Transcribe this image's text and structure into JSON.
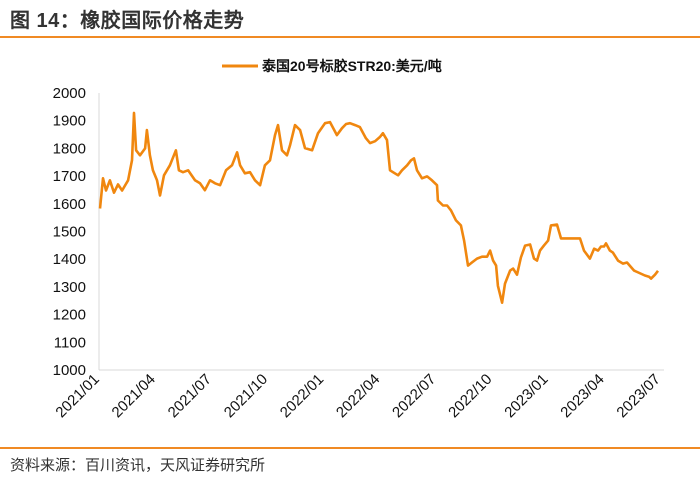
{
  "header": {
    "title": "图 14：橡胶国际价格走势"
  },
  "footer": {
    "source": "资料来源：百川资讯，天风证券研究所"
  },
  "colors": {
    "accent": "#f08a24",
    "series": "#f0870f",
    "axis": "#d9d9d9"
  },
  "chart_data": {
    "type": "line",
    "title": "橡胶国际价格走势",
    "xlabel": "",
    "ylabel": "",
    "ylim": [
      1000,
      2000
    ],
    "yticks": [
      "1000",
      "1100",
      "1200",
      "1300",
      "1400",
      "1500",
      "1600",
      "1700",
      "1800",
      "1900",
      "2000"
    ],
    "xticks": [
      "2021/01",
      "2021/04",
      "2021/07",
      "2021/10",
      "2022/01",
      "2022/04",
      "2022/07",
      "2022/10",
      "2023/01",
      "2023/04",
      "2023/07"
    ],
    "x_unit": "months since 2021/01",
    "grid": false,
    "legend_position": "top-center",
    "series": [
      {
        "name": "泰国20号标胶STR20:美元/吨",
        "x": [
          0,
          0.16,
          0.32,
          0.53,
          0.75,
          0.96,
          1.18,
          1.5,
          1.71,
          1.82,
          1.93,
          2.14,
          2.41,
          2.51,
          2.67,
          2.83,
          3.05,
          3.21,
          3.42,
          3.74,
          4.06,
          4.22,
          4.44,
          4.71,
          5.08,
          5.35,
          5.61,
          5.88,
          6.15,
          6.42,
          6.74,
          7.06,
          7.33,
          7.49,
          7.75,
          8.02,
          8.29,
          8.56,
          8.82,
          9.09,
          9.36,
          9.52,
          9.73,
          10.0,
          10.16,
          10.43,
          10.7,
          10.96,
          11.34,
          11.66,
          12.03,
          12.3,
          12.67,
          12.94,
          13.16,
          13.37,
          13.64,
          13.9,
          14.22,
          14.44,
          14.71,
          14.97,
          15.13,
          15.35,
          15.51,
          15.67,
          15.94,
          16.15,
          16.42,
          16.63,
          16.79,
          16.95,
          17.22,
          17.49,
          17.75,
          18.02,
          18.07,
          18.34,
          18.56,
          18.77,
          19.04,
          19.3,
          19.47,
          19.68,
          19.89,
          20.16,
          20.43,
          20.7,
          20.86,
          21.02,
          21.18,
          21.28,
          21.5,
          21.66,
          21.93,
          22.09,
          22.3,
          22.51,
          22.73,
          23.0,
          23.21,
          23.37,
          23.53,
          23.74,
          23.96,
          24.12,
          24.44,
          24.65,
          25.13,
          25.67,
          25.88,
          26.2,
          26.42,
          26.63,
          26.79,
          26.95,
          27.06,
          27.27,
          27.43,
          27.7,
          27.97,
          28.18,
          28.56,
          29.14,
          29.36,
          29.47,
          29.68,
          29.84
        ],
        "values": [
          1583,
          1692,
          1648,
          1685,
          1640,
          1670,
          1648,
          1685,
          1757,
          1928,
          1793,
          1775,
          1800,
          1866,
          1775,
          1721,
          1685,
          1630,
          1703,
          1739,
          1793,
          1721,
          1714,
          1721,
          1685,
          1674,
          1649,
          1685,
          1674,
          1667,
          1721,
          1739,
          1786,
          1739,
          1710,
          1714,
          1685,
          1667,
          1739,
          1757,
          1848,
          1884,
          1793,
          1775,
          1811,
          1884,
          1866,
          1801,
          1793,
          1855,
          1891,
          1895,
          1848,
          1873,
          1888,
          1891,
          1884,
          1877,
          1837,
          1819,
          1826,
          1841,
          1855,
          1830,
          1721,
          1714,
          1703,
          1721,
          1739,
          1757,
          1764,
          1721,
          1692,
          1699,
          1685,
          1667,
          1612,
          1594,
          1594,
          1576,
          1540,
          1522,
          1467,
          1377,
          1388,
          1402,
          1409,
          1409,
          1431,
          1395,
          1377,
          1304,
          1243,
          1312,
          1359,
          1366,
          1344,
          1406,
          1449,
          1453,
          1402,
          1395,
          1431,
          1449,
          1467,
          1522,
          1525,
          1475,
          1475,
          1475,
          1431,
          1402,
          1438,
          1431,
          1446,
          1446,
          1457,
          1431,
          1424,
          1395,
          1384,
          1388,
          1359,
          1341,
          1337,
          1330,
          1344,
          1358
        ]
      }
    ]
  }
}
